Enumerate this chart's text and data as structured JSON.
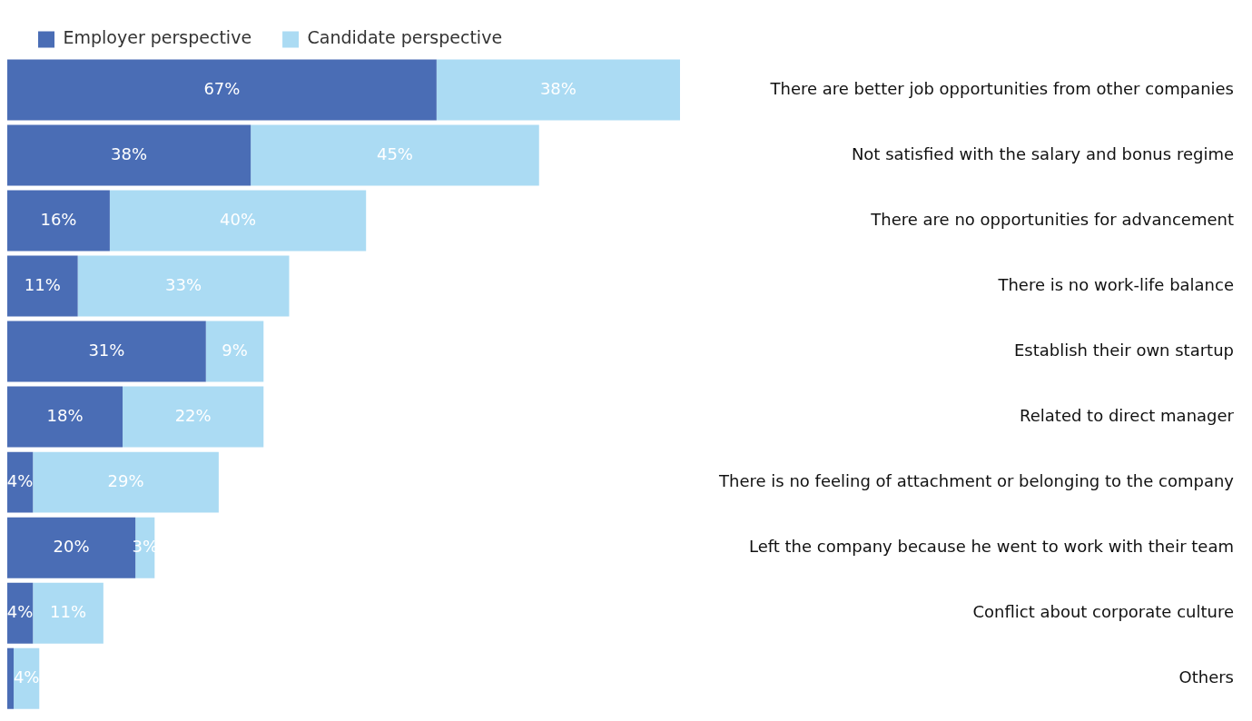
{
  "chart_data": {
    "type": "bar",
    "orientation": "horizontal",
    "stacked": true,
    "legend": "top left",
    "tick_labels": "y",
    "categories": [
      "There are better job opportunities from other companies",
      "Not satisfied with the salary and bonus regime",
      "There are no opportunities for advancement",
      "There is no work-life balance",
      "Establish their own startup",
      "Related to direct manager",
      "There is no feeling of attachment or belonging to the company",
      "Left the company because he went to work with their team",
      "Conflict about corporate culture",
      "Others"
    ],
    "series": [
      {
        "name": "Employer perspective",
        "color": "#4a6db5",
        "values": [
          67,
          38,
          16,
          11,
          31,
          18,
          4,
          20,
          4,
          1
        ],
        "value_labels": [
          "67%",
          "38%",
          "16%",
          "11%",
          "31%",
          "18%",
          "4%",
          "20%",
          "4%",
          null
        ]
      },
      {
        "name": "Candidate perspective",
        "color": "#abdbf3",
        "values": [
          38,
          45,
          40,
          33,
          9,
          22,
          29,
          3,
          11,
          4
        ],
        "value_labels": [
          "38%",
          "45%",
          "40%",
          "33%",
          "9%",
          "22%",
          "29%",
          "3%",
          "11%",
          "4%"
        ]
      }
    ]
  }
}
